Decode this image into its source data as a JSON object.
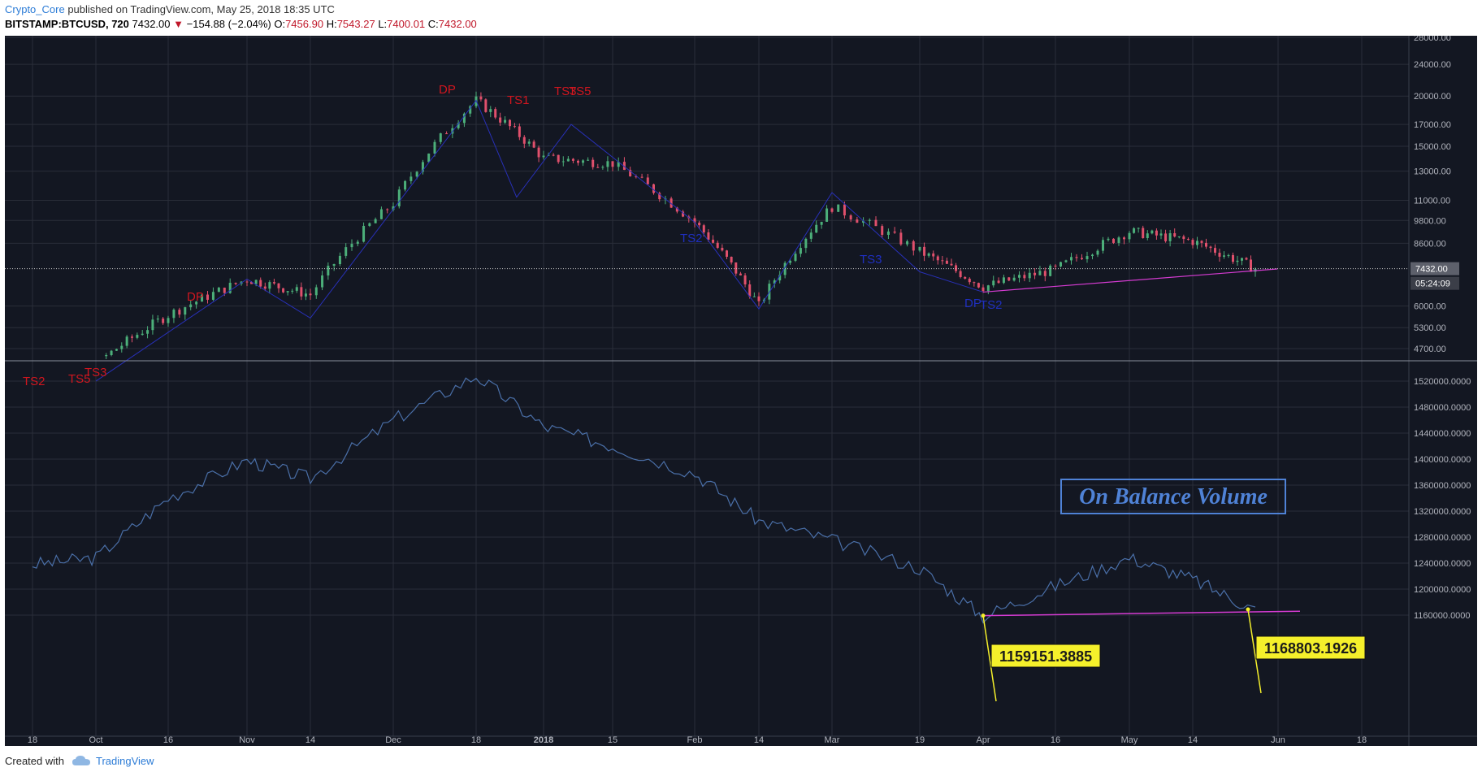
{
  "header": {
    "author": "Crypto_Core",
    "published_text": "published on TradingView.com, May 25, 2018 18:35 UTC",
    "symbol": "BITSTAMP:BTCUSD, 720",
    "last_price": "7432.00",
    "change_arrow": "▼",
    "change": "−154.88 (−2.04%)",
    "o_label": "O:",
    "o_value": "7456.90",
    "h_label": "H:",
    "h_value": "7543.27",
    "l_label": "L:",
    "l_value": "7400.01",
    "c_label": "C:",
    "c_value": "7432.00"
  },
  "footer": {
    "created_with": "Created with",
    "brand": "TradingView"
  },
  "colors": {
    "background": "#131722",
    "grid": "#2a2e39",
    "up": "#4caf7a",
    "down": "#e0506c",
    "obv_line": "#4a6fa8",
    "trendline": "#d43bd1",
    "annotation_red": "#d0161f",
    "annotation_blue": "#1f2fc0",
    "callout_fill": "#f5f02b",
    "obv_label": "#4f82d6"
  },
  "chart_data": [
    {
      "type": "line",
      "title": "",
      "price_axis_ticks": [
        "28000.00",
        "24000.00",
        "20000.00",
        "17000.00",
        "15000.00",
        "13000.00",
        "11000.00",
        "9800.00",
        "8600.00",
        "6000.00",
        "5300.00",
        "4700.00"
      ],
      "current_price_label": "7432.00",
      "countdown_label": "05:24:09",
      "x_ticks": [
        "18",
        "Oct",
        "16",
        "Nov",
        "14",
        "Dec",
        "18",
        "2018",
        "15",
        "Feb",
        "14",
        "Mar",
        "19",
        "Apr",
        "16",
        "May",
        "14",
        "Jun",
        "18"
      ],
      "x": [
        "Sep 18",
        "Oct 1",
        "Oct 16",
        "Nov 1",
        "Nov 14",
        "Dec 1",
        "Dec 18",
        "Jan 1",
        "Jan 15",
        "Feb 1",
        "Feb 14",
        "Mar 1",
        "Mar 19",
        "Apr 1",
        "Apr 16",
        "May 1",
        "May 14",
        "May 25"
      ],
      "series": [
        {
          "values": [
            3900,
            4300,
            5700,
            7000,
            6400,
            10800,
            19500,
            14000,
            13600,
            9700,
            6000,
            10600,
            8200,
            6700,
            7400,
            9200,
            8700,
            7432
          ]
        }
      ],
      "annotations_red": [
        "TS2",
        "TS5",
        "TS3",
        "DP",
        "DP",
        "TS1",
        "TS3",
        "TS5"
      ],
      "annotations_blue": [
        "TS2",
        "TS3",
        "DP",
        "TS2"
      ],
      "scale": "log"
    },
    {
      "type": "line",
      "title": "",
      "label": "On Balance Volume",
      "axis_ticks": [
        "1520000.0000",
        "1480000.0000",
        "1440000.0000",
        "1400000.0000",
        "1360000.0000",
        "1320000.0000",
        "1280000.0000",
        "1240000.0000",
        "1200000.0000",
        "1160000.0000"
      ],
      "x": [
        "Sep 18",
        "Oct 1",
        "Oct 16",
        "Nov 1",
        "Nov 14",
        "Dec 1",
        "Dec 18",
        "Jan 1",
        "Jan 15",
        "Feb 1",
        "Feb 14",
        "Mar 1",
        "Mar 19",
        "Apr 1",
        "Apr 16",
        "May 1",
        "May 14",
        "May 25"
      ],
      "series": [
        {
          "values": [
            1238000,
            1248000,
            1340000,
            1398000,
            1370000,
            1460000,
            1528000,
            1450000,
            1420000,
            1378000,
            1305000,
            1275000,
            1232000,
            1158000,
            1205000,
            1248000,
            1215000,
            1168000
          ]
        }
      ],
      "callouts": [
        "1159151.3885",
        "1168803.1926"
      ]
    }
  ]
}
